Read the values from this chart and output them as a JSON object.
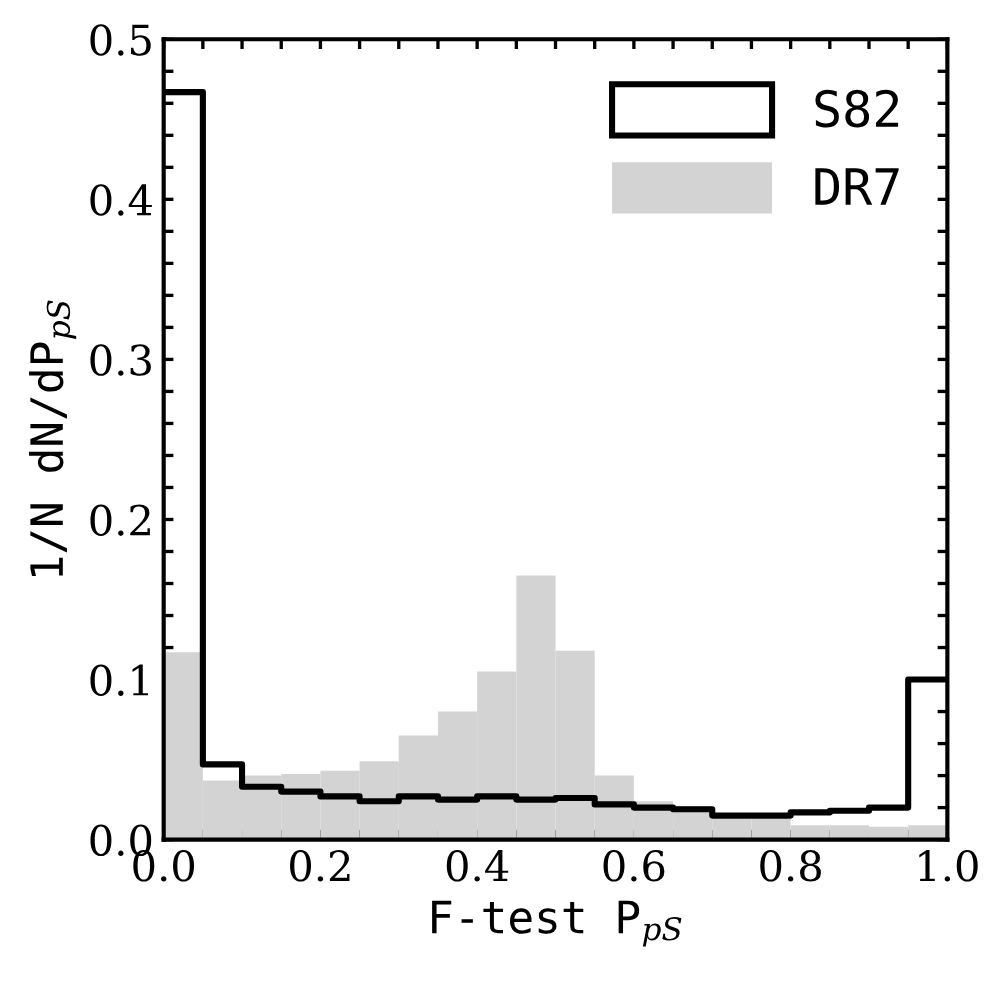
{
  "chart_data": {
    "type": "histogram",
    "xlabel": "F-test P$_{pS}$",
    "ylabel": "1/N dN/dP$_{pS}$",
    "bins": [
      0,
      0.05,
      0.1,
      0.15,
      0.2,
      0.25,
      0.3,
      0.35,
      0.4,
      0.45,
      0.5,
      0.55,
      0.6,
      0.65,
      0.7,
      0.75,
      0.8,
      0.85,
      0.9,
      0.95,
      1.0
    ],
    "series": [
      {
        "name": "S82",
        "type": "step",
        "color": "#000000",
        "x": [
          0,
          0.05,
          0.1,
          0.15,
          0.2,
          0.25,
          0.3,
          0.35,
          0.4,
          0.45,
          0.5,
          0.55,
          0.6,
          0.65,
          0.7,
          0.75,
          0.8,
          0.85,
          0.9,
          0.95,
          1.0
        ],
        "values": [
          0.467,
          0.047,
          0.033,
          0.03,
          0.027,
          0.024,
          0.027,
          0.025,
          0.027,
          0.025,
          0.026,
          0.022,
          0.02,
          0.019,
          0.015,
          0.015,
          0.017,
          0.018,
          0.02,
          0.1,
          0.1
        ]
      },
      {
        "name": "DR7",
        "color": "#d3d3d3",
        "values": [
          0.117,
          0.037,
          0.04,
          0.041,
          0.043,
          0.049,
          0.065,
          0.08,
          0.105,
          0.165,
          0.118,
          0.04,
          0.024,
          0.021,
          0.013,
          0.013,
          0.009,
          0.009,
          0.008,
          0.009
        ]
      }
    ],
    "xlim": [
      0,
      1.0
    ],
    "ylim": [
      0,
      0.5
    ],
    "xticks": [
      {
        "value": 0,
        "label": "0.0"
      },
      {
        "value": 0.05,
        "label": null
      },
      {
        "value": 0.1,
        "label": null
      },
      {
        "value": 0.15,
        "label": null
      },
      0.2,
      {
        "value": 0.25,
        "label": null
      },
      {
        "value": 0.3,
        "label": null
      },
      {
        "value": 0.35,
        "label": null
      },
      0.4,
      {
        "value": 0.45,
        "label": null
      },
      {
        "value": 0.5,
        "label": null
      },
      {
        "value": 0.55,
        "label": null
      },
      0.6,
      {
        "value": 0.65,
        "label": null
      },
      {
        "value": 0.7,
        "label": null
      },
      {
        "value": 0.75,
        "label": null
      },
      0.8,
      {
        "value": 0.85,
        "label": null
      },
      {
        "value": 0.9,
        "label": null
      },
      {
        "value": 0.95,
        "label": null
      },
      {
        "value": 1,
        "label": "1.0"
      }
    ],
    "yticks": [
      {
        "value": 0,
        "label": "0.0"
      },
      {
        "value": 0.02,
        "label": null
      },
      {
        "value": 0.04,
        "label": null
      },
      {
        "value": 0.06,
        "label": null
      },
      {
        "value": 0.08,
        "label": null
      },
      0.1,
      {
        "value": 0.12,
        "label": null
      },
      {
        "value": 0.14,
        "label": null
      },
      {
        "value": 0.16,
        "label": null
      },
      {
        "value": 0.18,
        "label": null
      },
      0.2,
      {
        "value": 0.22,
        "label": null
      },
      {
        "value": 0.24,
        "label": null
      },
      {
        "value": 0.26,
        "label": null
      },
      {
        "value": 0.28,
        "label": null
      },
      0.3,
      {
        "value": 0.32,
        "label": null
      },
      {
        "value": 0.34,
        "label": null
      },
      {
        "value": 0.36,
        "label": null
      },
      {
        "value": 0.38,
        "label": null
      },
      0.4,
      {
        "value": 0.42,
        "label": null
      },
      {
        "value": 0.44,
        "label": null
      },
      {
        "value": 0.46,
        "label": null
      },
      {
        "value": 0.48,
        "label": null
      },
      0.5
    ],
    "legend": "top right",
    "grid": false
  }
}
